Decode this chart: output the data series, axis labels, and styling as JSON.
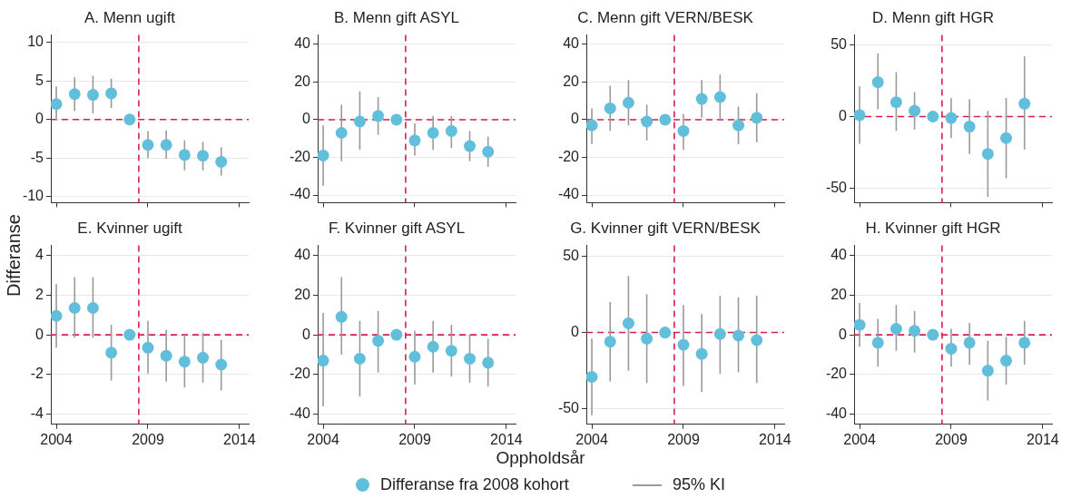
{
  "chart_data": [
    {
      "type": "scatter",
      "title": "A. Menn ugift",
      "ylabel": "Differanse",
      "legend": "bottom",
      "annotations": [
        "95% KI"
      ],
      "x": [
        2004,
        2005,
        2006,
        2007,
        2008,
        2009,
        2010,
        2011,
        2012,
        2013
      ],
      "xlim": [
        2003.7,
        2014.5
      ],
      "xticks": [
        2004,
        2009,
        2014
      ],
      "ylim": [
        -10.8,
        11
      ],
      "yticks": [
        -10,
        -5,
        0,
        5,
        10
      ],
      "tick_labels": "y",
      "grid": "y",
      "marker": "circle",
      "ref_lines": [
        {
          "axis": "x",
          "value": 2008.5,
          "color": "#d6204f",
          "line_style": "dashed"
        },
        {
          "axis": "y",
          "value": 0,
          "color": "#d6204f",
          "line_style": "dashed"
        }
      ],
      "series": [
        {
          "name": "Differanse fra 2008 kohort",
          "color": "#62bfdc",
          "values": [
            2.0,
            3.3,
            3.2,
            3.4,
            0,
            -3.3,
            -3.3,
            -4.6,
            -4.7,
            -5.5
          ],
          "errors": [
            [
              -0.1,
              4.3
            ],
            [
              1.1,
              5.5
            ],
            [
              0.8,
              5.7
            ],
            [
              1.5,
              5.3
            ],
            null,
            [
              -5.0,
              -1.5
            ],
            [
              -5.1,
              -1.4
            ],
            [
              -6.6,
              -2.7
            ],
            [
              -6.6,
              -2.9
            ],
            [
              -7.3,
              -3.6
            ]
          ]
        }
      ]
    },
    {
      "type": "scatter",
      "title": "B. Menn gift ASYL",
      "x": [
        2004,
        2005,
        2006,
        2007,
        2008,
        2009,
        2010,
        2011,
        2012,
        2013
      ],
      "xlim": [
        2003.7,
        2014.5
      ],
      "xticks": [
        2004,
        2009,
        2014
      ],
      "ylim": [
        -44,
        45
      ],
      "yticks": [
        -40,
        -20,
        0,
        20,
        40
      ],
      "tick_labels": "y",
      "grid": "y",
      "marker": "circle",
      "ref_lines": [
        {
          "axis": "x",
          "value": 2008.5,
          "color": "#d6204f",
          "line_style": "dashed"
        },
        {
          "axis": "y",
          "value": 0,
          "color": "#d6204f",
          "line_style": "dashed"
        }
      ],
      "series": [
        {
          "name": "Differanse fra 2008 kohort",
          "color": "#62bfdc",
          "values": [
            -19,
            -7,
            -1,
            2,
            0,
            -11,
            -7,
            -6,
            -14,
            -17
          ],
          "errors": [
            [
              -35,
              -3
            ],
            [
              -22,
              8
            ],
            [
              -16,
              15
            ],
            [
              -8,
              12
            ],
            null,
            [
              -19,
              -2
            ],
            [
              -16,
              2
            ],
            [
              -15,
              2
            ],
            [
              -22,
              -6
            ],
            [
              -25,
              -9
            ]
          ]
        }
      ]
    },
    {
      "type": "scatter",
      "title": "C. Menn gift VERN/BESK",
      "x": [
        2004,
        2005,
        2006,
        2007,
        2008,
        2009,
        2010,
        2011,
        2012,
        2013
      ],
      "xlim": [
        2003.7,
        2014.5
      ],
      "xticks": [
        2004,
        2009,
        2014
      ],
      "ylim": [
        -44,
        45
      ],
      "yticks": [
        -40,
        -20,
        0,
        20,
        40
      ],
      "tick_labels": "y",
      "grid": "y",
      "marker": "circle",
      "ref_lines": [
        {
          "axis": "x",
          "value": 2008.5,
          "color": "#d6204f",
          "line_style": "dashed"
        },
        {
          "axis": "y",
          "value": 0,
          "color": "#d6204f",
          "line_style": "dashed"
        }
      ],
      "series": [
        {
          "name": "Differanse fra 2008 kohort",
          "color": "#62bfdc",
          "values": [
            -3,
            6,
            9,
            -1,
            0,
            -6,
            11,
            12,
            -3,
            1
          ],
          "errors": [
            [
              -13,
              6
            ],
            [
              -6,
              18
            ],
            [
              -3,
              21
            ],
            [
              -11,
              8
            ],
            null,
            [
              -16,
              3
            ],
            [
              1,
              21
            ],
            [
              0,
              24
            ],
            [
              -13,
              7
            ],
            [
              -12,
              14
            ]
          ]
        }
      ]
    },
    {
      "type": "scatter",
      "title": "D. Menn gift HGR",
      "x": [
        2004,
        2005,
        2006,
        2007,
        2008,
        2009,
        2010,
        2011,
        2012,
        2013
      ],
      "xlim": [
        2003.7,
        2014.5
      ],
      "xticks": [
        2004,
        2009,
        2014
      ],
      "ylim": [
        -60,
        57
      ],
      "yticks": [
        -50,
        0,
        50
      ],
      "tick_labels": "y",
      "grid": "y",
      "marker": "circle",
      "ref_lines": [
        {
          "axis": "x",
          "value": 2008.5,
          "color": "#d6204f",
          "line_style": "dashed"
        },
        {
          "axis": "y",
          "value": 0,
          "color": "#d6204f",
          "line_style": "dashed"
        }
      ],
      "series": [
        {
          "name": "Differanse fra 2008 kohort",
          "color": "#62bfdc",
          "values": [
            1,
            24,
            10,
            4,
            0,
            -1,
            -7,
            -26,
            -15,
            9
          ],
          "errors": [
            [
              -19,
              21
            ],
            [
              5,
              44
            ],
            [
              -10,
              31
            ],
            [
              -9,
              17
            ],
            null,
            [
              -15,
              13
            ],
            [
              -26,
              12
            ],
            [
              -56,
              4
            ],
            [
              -43,
              13
            ],
            [
              -23,
              42
            ]
          ]
        }
      ]
    },
    {
      "type": "scatter",
      "title": "E. Kvinner ugift",
      "x": [
        2004,
        2005,
        2006,
        2007,
        2008,
        2009,
        2010,
        2011,
        2012,
        2013
      ],
      "xlim": [
        2003.7,
        2014.5
      ],
      "xticks": [
        2004,
        2009,
        2014
      ],
      "ylim": [
        -4.5,
        4.5
      ],
      "yticks": [
        -4,
        -2,
        0,
        2,
        4
      ],
      "grid": "y",
      "marker": "circle",
      "ref_lines": [
        {
          "axis": "x",
          "value": 2008.5,
          "color": "#d6204f",
          "line_style": "dashed"
        },
        {
          "axis": "y",
          "value": 0,
          "color": "#d6204f",
          "line_style": "dashed"
        }
      ],
      "series": [
        {
          "name": "Differanse fra 2008 kohort",
          "color": "#62bfdc",
          "values": [
            0.95,
            1.35,
            1.35,
            -0.9,
            0,
            -0.65,
            -1.05,
            -1.35,
            -1.15,
            -1.5
          ],
          "errors": [
            [
              -0.65,
              2.55
            ],
            [
              -0.15,
              2.9
            ],
            [
              -0.15,
              2.9
            ],
            [
              -2.3,
              0.5
            ],
            null,
            [
              -1.95,
              0.7
            ],
            [
              -2.35,
              0.25
            ],
            [
              -2.65,
              0
            ],
            [
              -2.4,
              0.1
            ],
            [
              -2.8,
              -0.25
            ]
          ]
        }
      ]
    },
    {
      "type": "scatter",
      "title": "F. Kvinner gift ASYL",
      "xlabel": "Oppholdsår",
      "x": [
        2004,
        2005,
        2006,
        2007,
        2008,
        2009,
        2010,
        2011,
        2012,
        2013
      ],
      "xlim": [
        2003.7,
        2014.5
      ],
      "xticks": [
        2004,
        2009,
        2014
      ],
      "ylim": [
        -45,
        45
      ],
      "yticks": [
        -40,
        -20,
        0,
        20,
        40
      ],
      "grid": "y",
      "marker": "circle",
      "ref_lines": [
        {
          "axis": "x",
          "value": 2008.5,
          "color": "#d6204f",
          "line_style": "dashed"
        },
        {
          "axis": "y",
          "value": 0,
          "color": "#d6204f",
          "line_style": "dashed"
        }
      ],
      "series": [
        {
          "name": "Differanse fra 2008 kohort",
          "color": "#62bfdc",
          "values": [
            -13,
            9,
            -12,
            -3,
            0,
            -11,
            -6,
            -8,
            -12,
            -14
          ],
          "errors": [
            [
              -36,
              11
            ],
            [
              -10,
              29
            ],
            [
              -31,
              7
            ],
            [
              -19,
              12
            ],
            null,
            [
              -25,
              2
            ],
            [
              -19,
              7
            ],
            [
              -21,
              5
            ],
            [
              -24,
              0
            ],
            [
              -26,
              -2
            ]
          ]
        }
      ]
    },
    {
      "type": "scatter",
      "title": "G. Kvinner gift VERN/BESK",
      "x": [
        2004,
        2005,
        2006,
        2007,
        2008,
        2009,
        2010,
        2011,
        2012,
        2013
      ],
      "xlim": [
        2003.7,
        2014.5
      ],
      "xticks": [
        2004,
        2009,
        2014
      ],
      "ylim": [
        -60,
        57
      ],
      "yticks": [
        -50,
        0,
        50
      ],
      "grid": "y",
      "marker": "circle",
      "ref_lines": [
        {
          "axis": "x",
          "value": 2008.5,
          "color": "#d6204f",
          "line_style": "dashed"
        },
        {
          "axis": "y",
          "value": 0,
          "color": "#d6204f",
          "line_style": "dashed"
        }
      ],
      "series": [
        {
          "name": "Differanse fra 2008 kohort",
          "color": "#62bfdc",
          "values": [
            -29,
            -6,
            6,
            -4,
            0,
            -8,
            -14,
            -1,
            -2,
            -5
          ],
          "errors": [
            [
              -54,
              -4
            ],
            [
              -32,
              20
            ],
            [
              -25,
              37
            ],
            [
              -33,
              25
            ],
            null,
            [
              -35,
              18
            ],
            [
              -39,
              12
            ],
            [
              -27,
              24
            ],
            [
              -26,
              23
            ],
            [
              -33,
              24
            ]
          ]
        }
      ]
    },
    {
      "type": "scatter",
      "title": "H. Kvinner gift HGR",
      "x": [
        2004,
        2005,
        2006,
        2007,
        2008,
        2009,
        2010,
        2011,
        2012,
        2013
      ],
      "xlim": [
        2003.7,
        2014.5
      ],
      "xticks": [
        2004,
        2009,
        2014
      ],
      "ylim": [
        -45,
        45
      ],
      "yticks": [
        -40,
        -20,
        0,
        20,
        40
      ],
      "grid": "y",
      "marker": "circle",
      "ref_lines": [
        {
          "axis": "x",
          "value": 2008.5,
          "color": "#d6204f",
          "line_style": "dashed"
        },
        {
          "axis": "y",
          "value": 0,
          "color": "#d6204f",
          "line_style": "dashed"
        }
      ],
      "series": [
        {
          "name": "Differanse fra 2008 kohort",
          "color": "#62bfdc",
          "values": [
            5,
            -4,
            3,
            2,
            0,
            -7,
            -4,
            -18,
            -13,
            -4
          ],
          "errors": [
            [
              -6,
              16
            ],
            [
              -16,
              8
            ],
            [
              -8,
              15
            ],
            [
              -9,
              12
            ],
            null,
            [
              -16,
              3
            ],
            [
              -15,
              6
            ],
            [
              -33,
              -3
            ],
            [
              -25,
              -1
            ],
            [
              -15,
              7
            ]
          ]
        }
      ]
    }
  ]
}
